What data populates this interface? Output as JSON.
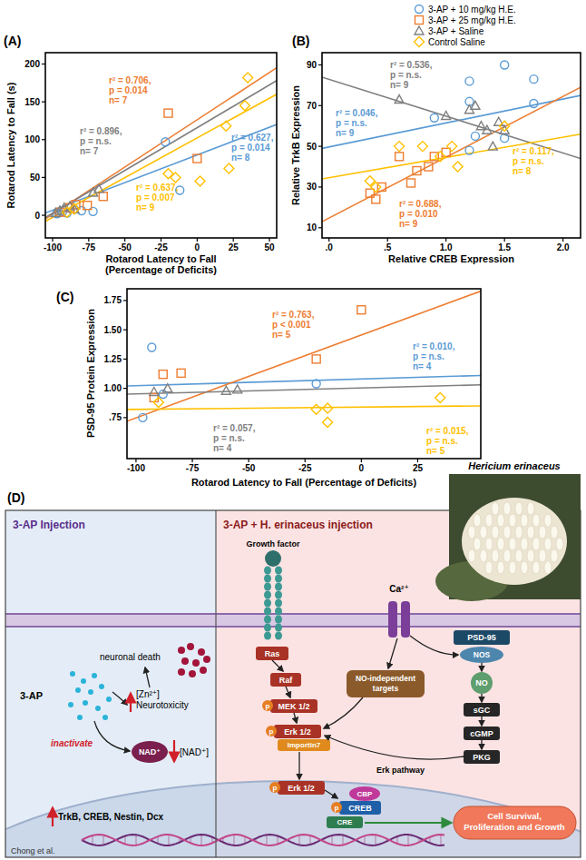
{
  "chart_data": [
    {
      "type": "scatter",
      "panel": "(A)",
      "x_label": [
        "Rotarod Latency to Fall",
        "(Percentage of Deficits)"
      ],
      "y_label": "Rotarod Latency to Fall (s)",
      "xlim": [
        -105,
        55
      ],
      "ylim": [
        -30,
        215
      ],
      "xticks": [
        -100,
        -75,
        -50,
        -25,
        0,
        25,
        50
      ],
      "yticks": [
        0,
        50,
        100,
        150,
        200
      ],
      "grid": false,
      "legend": "top-right",
      "series": [
        {
          "name": "3-AP + 10 mg/kg H.E.",
          "color": "#5b9bd5",
          "marker": "circle",
          "x": [
            -97,
            -93,
            -90,
            -85,
            -80,
            -72,
            -22,
            -12
          ],
          "values": [
            2,
            5,
            3,
            8,
            6,
            5,
            97,
            33
          ],
          "fit": {
            "x": [
              -105,
              55
            ],
            "y": [
              3,
              120
            ]
          },
          "stats": [
            "r² = 0.627,",
            "p = 0.014",
            "n= 8"
          ]
        },
        {
          "name": "3-AP + 25 mg/kg H.E.",
          "color": "#ed7d31",
          "marker": "square",
          "x": [
            -95,
            -88,
            -84,
            -76,
            -65,
            -20,
            0
          ],
          "values": [
            4,
            10,
            14,
            13,
            25,
            135,
            75
          ],
          "fit": {
            "x": [
              -105,
              55
            ],
            "y": [
              -5,
              195
            ]
          },
          "stats": [
            "r² = 0.706,",
            "p = 0.014",
            "n= 7"
          ]
        },
        {
          "name": "3-AP + Saline",
          "color": "#808080",
          "marker": "triangle",
          "x": [
            -98,
            -95,
            -92,
            -88,
            -85,
            -72,
            -68
          ],
          "values": [
            3,
            6,
            10,
            12,
            8,
            30,
            35
          ],
          "fit": {
            "x": [
              -105,
              55
            ],
            "y": [
              -3,
              178
            ]
          },
          "stats": [
            "r² = 0.896,",
            "p = n.s.",
            "n= 7"
          ]
        },
        {
          "name": "Control Saline",
          "color": "#ffc000",
          "marker": "diamond",
          "x": [
            -90,
            -85,
            -20,
            -15,
            2,
            20,
            22,
            35,
            33
          ],
          "values": [
            4,
            8,
            55,
            50,
            45,
            118,
            62,
            182,
            145
          ],
          "fit": {
            "x": [
              -105,
              55
            ],
            "y": [
              -8,
              160
            ]
          },
          "stats": [
            "r² = 0.637,",
            "p = 0.007",
            "n= 9"
          ]
        }
      ]
    },
    {
      "type": "scatter",
      "panel": "(B)",
      "x_label": "Relative CREB Expression",
      "y_label": "Relative TrkB Expression",
      "xlim": [
        -0.06,
        2.15
      ],
      "ylim": [
        5,
        96
      ],
      "xticks": [
        {
          "value": 0,
          "label": ".0"
        },
        {
          "value": 0.5,
          "label": ".5"
        },
        {
          "value": 1,
          "label": "1.0"
        },
        {
          "value": 1.5,
          "label": "1.5"
        },
        {
          "value": 2,
          "label": "2.0"
        }
      ],
      "yticks": [
        10,
        30,
        50,
        70,
        90
      ],
      "grid": false,
      "series": [
        {
          "color": "#5b9bd5",
          "marker": "circle",
          "x": [
            1.2,
            1.5,
            1.75,
            1.75,
            1.2,
            1.25,
            1.5,
            1.2,
            0.9
          ],
          "values": [
            82,
            90,
            83,
            71,
            72,
            55,
            54,
            48,
            64
          ],
          "fit": {
            "x": [
              -0.06,
              2.15
            ],
            "y": [
              49,
              75
            ]
          },
          "stats": [
            "r² = 0.046,",
            "p = n.s.",
            "n= 9"
          ]
        },
        {
          "color": "#ed7d31",
          "marker": "square",
          "x": [
            0.35,
            0.4,
            0.45,
            0.6,
            0.7,
            0.75,
            0.85,
            0.9,
            1.0
          ],
          "values": [
            27,
            24,
            30,
            45,
            32,
            38,
            40,
            45,
            47
          ],
          "fit": {
            "x": [
              -0.06,
              2.15
            ],
            "y": [
              13,
              79
            ]
          },
          "stats": [
            "r² = 0.688,",
            "p = 0.010",
            "n= 9"
          ]
        },
        {
          "color": "#808080",
          "marker": "triangle",
          "x": [
            0.6,
            1.0,
            1.25,
            1.3,
            1.35,
            1.45,
            1.4,
            1.5,
            1.2
          ],
          "values": [
            73,
            65,
            70,
            60,
            58,
            62,
            50,
            58,
            68
          ],
          "fit": {
            "x": [
              -0.06,
              2.15
            ],
            "y": [
              84,
              44
            ]
          },
          "stats": [
            "r² = 0.536,",
            "p = n.s.",
            "n= 9"
          ]
        },
        {
          "color": "#ffc000",
          "marker": "diamond",
          "x": [
            0.35,
            0.4,
            0.6,
            0.8,
            0.95,
            1.05,
            1.1,
            1.5
          ],
          "values": [
            33,
            30,
            50,
            50,
            45,
            50,
            40,
            60
          ],
          "fit": {
            "x": [
              -0.06,
              2.15
            ],
            "y": [
              34,
              56
            ]
          },
          "stats": [
            "r² = 0.117,",
            "p = n.s.",
            "n= 8"
          ]
        }
      ]
    },
    {
      "type": "scatter",
      "panel": "(C)",
      "x_label": "Rotarod Latency to Fall (Percentage of Deficits)",
      "y_label": "PSD-95 Protein Expression",
      "xlim": [
        -104,
        53
      ],
      "ylim": [
        0.4,
        1.85
      ],
      "xticks": [
        -100,
        -75,
        -50,
        -25,
        0,
        25
      ],
      "yticks": [
        {
          "value": 0.75,
          "label": ".75"
        },
        {
          "value": 1,
          "label": "1.00"
        },
        {
          "value": 1.25,
          "label": "1.25"
        },
        {
          "value": 1.5,
          "label": "1.50"
        },
        {
          "value": 1.75,
          "label": "1.75"
        }
      ],
      "grid": false,
      "series": [
        {
          "color": "#5b9bd5",
          "marker": "circle",
          "x": [
            -93,
            -97,
            -20,
            -88
          ],
          "values": [
            1.35,
            0.75,
            1.04,
            0.95
          ],
          "fit": {
            "x": [
              -104,
              53
            ],
            "y": [
              1.02,
              1.11
            ]
          },
          "stats": [
            "r² = 0.010,",
            "p = n.s.",
            "n= 4"
          ]
        },
        {
          "color": "#ed7d31",
          "marker": "square",
          "x": [
            -92,
            -88,
            -80,
            -20,
            0
          ],
          "values": [
            0.92,
            1.12,
            1.13,
            1.25,
            1.67
          ],
          "fit": {
            "x": [
              -104,
              53
            ],
            "y": [
              0.72,
              1.83
            ]
          },
          "stats": [
            "r² = 0.763,",
            "p < 0.001",
            "n= 5"
          ]
        },
        {
          "color": "#808080",
          "marker": "triangle",
          "x": [
            -92,
            -86,
            -60,
            -55
          ],
          "values": [
            0.97,
            1.0,
            0.98,
            0.99
          ],
          "fit": {
            "x": [
              -104,
              53
            ],
            "y": [
              0.95,
              1.03
            ]
          },
          "stats": [
            "r² = 0.057,",
            "p = n.s.",
            "n= 4"
          ]
        },
        {
          "color": "#ffc000",
          "marker": "diamond",
          "x": [
            -90,
            -20,
            -15,
            -15,
            35
          ],
          "values": [
            0.88,
            0.82,
            0.83,
            0.71,
            0.92
          ],
          "fit": {
            "x": [
              -104,
              53
            ],
            "y": [
              0.82,
              0.85
            ]
          },
          "stats": [
            "r² = 0.015,",
            "p = n.s.",
            "n= 5"
          ]
        }
      ]
    }
  ],
  "diagram": {
    "panel": "(D)",
    "photo_label": "Hericium erinaceus",
    "credit": "Chong et al.",
    "left_title": "3-AP Injection",
    "right_title": "3-AP + H. erinaceus injection",
    "drug": "3-AP",
    "death": "neuronal death",
    "zinc": "[Zn²⁺]",
    "neurotox": "Neurotoxicity",
    "inactivate": "inactivate",
    "nad": "NAD⁺",
    "nad_level": "[NAD⁺]",
    "genes": "TrkB, CREB, Nestin, Dcx",
    "growth_factor": "Growth factor",
    "calcium": "Ca²⁺",
    "psd95": "PSD-95",
    "nos": "NOS",
    "no": "NO",
    "sgc": "sGC",
    "cgmp": "cGMP",
    "pkg": "PKG",
    "ras": "Ras",
    "raf": "Raf",
    "mek": "MEK 1/2",
    "erk": "Erk 1/2",
    "importin": "Importin7",
    "erk_nuclear": "Erk 1/2",
    "no_independent": [
      "NO-independent",
      "targets"
    ],
    "erk_pathway": "Erk pathway",
    "cbp": "CBP",
    "creb": "CREB",
    "cre": "CRE",
    "outcome": [
      "Cell Survival,",
      "Proliferation and Growth"
    ],
    "phospho": "p"
  }
}
